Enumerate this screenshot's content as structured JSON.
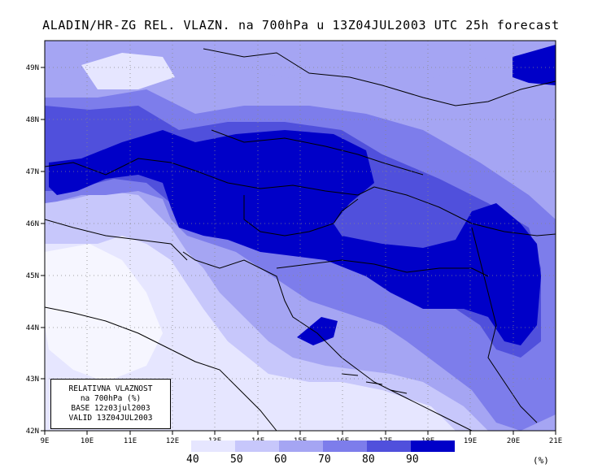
{
  "title": "ALADIN/HR-ZG REL. VLAZN. na 700hPa u 13Z04JUL2003 UTC 25h forecast",
  "axes": {
    "lat_labels": [
      "49N",
      "48N",
      "47N",
      "46N",
      "45N",
      "44N",
      "43N",
      "42N"
    ],
    "lon_labels": [
      "9E",
      "10E",
      "11E",
      "12E",
      "13E",
      "14E",
      "15E",
      "16E",
      "17E",
      "18E",
      "19E",
      "20E",
      "21E"
    ]
  },
  "info_box": {
    "line1": "RELATIVNA VLAZNOST",
    "line2": "na 700hPa (%)",
    "line3": "BASE 12z03jul2003",
    "line4": "VALID 13Z04JUL2003"
  },
  "legend": {
    "levels": [
      "40",
      "50",
      "60",
      "70",
      "80",
      "90"
    ],
    "unit": "(%)",
    "colors": [
      "#e6e6ff",
      "#c7c7fb",
      "#a5a5f3",
      "#7d7deb",
      "#5050dc",
      "#0000c8"
    ]
  },
  "colors": {
    "background_shade": "#f6f6ff",
    "border_lines": "#000000"
  }
}
